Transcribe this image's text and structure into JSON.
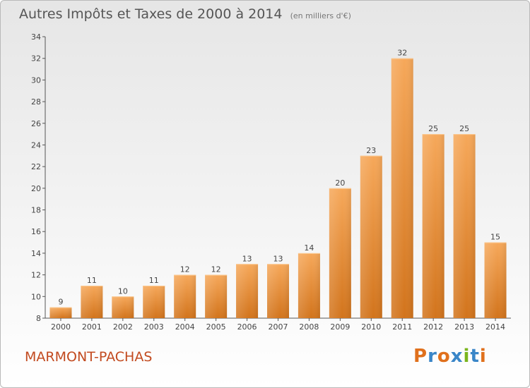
{
  "header": {
    "title": "Autres Impôts et Taxes de 2000 à 2014",
    "subtitle": "(en milliers d'€)"
  },
  "footer": {
    "commune": "MARMONT-PACHAS",
    "logo": "Proxiti"
  },
  "colors": {
    "bar_top": "#f6a85a",
    "bar_bottom": "#d2741c",
    "commune_text": "#c24a1f"
  },
  "chart_data": {
    "type": "bar",
    "title": "Autres Impôts et Taxes de 2000 à 2014",
    "subtitle": "(en milliers d'€)",
    "categories": [
      "2000",
      "2001",
      "2002",
      "2003",
      "2004",
      "2005",
      "2006",
      "2007",
      "2008",
      "2009",
      "2010",
      "2011",
      "2012",
      "2013",
      "2014"
    ],
    "values": [
      9,
      11,
      10,
      11,
      12,
      12,
      13,
      13,
      14,
      20,
      23,
      32,
      25,
      25,
      15
    ],
    "ylim": [
      8,
      34
    ],
    "yticks": [
      8,
      10,
      12,
      14,
      16,
      18,
      20,
      22,
      24,
      26,
      28,
      30,
      32,
      34
    ],
    "grid": false,
    "data_labels": true
  }
}
